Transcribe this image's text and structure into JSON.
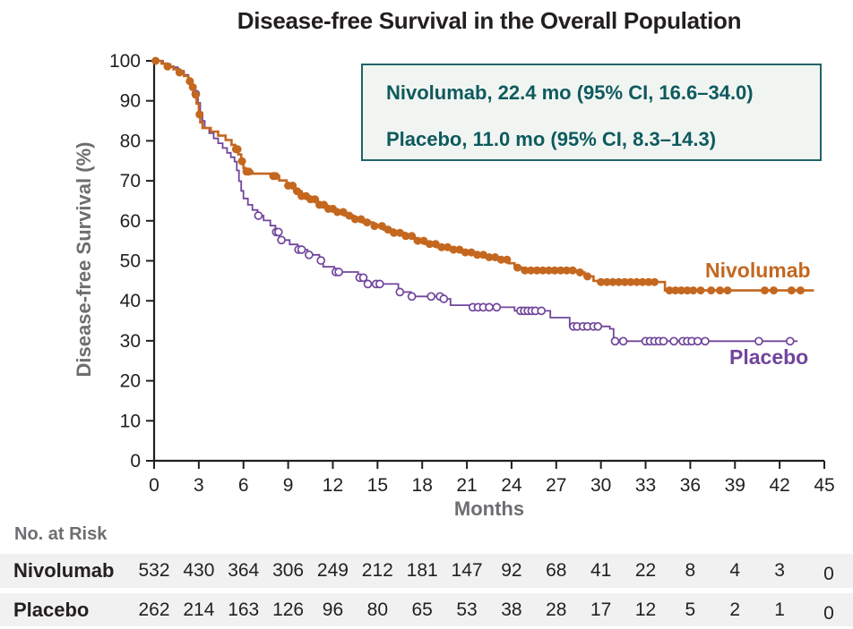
{
  "title": "Disease-free Survival in the Overall Population",
  "legend_box": {
    "lines": [
      "Nivolumab, 22.4 mo (95% CI, 16.6–34.0)",
      "Placebo, 11.0 mo (95% CI, 8.3–14.3)"
    ]
  },
  "colors": {
    "nivolumab": "#C4671F",
    "placebo": "#71459B",
    "legend_text": "#0E5A5E",
    "legend_border": "#1E6468",
    "legend_bg": "#F1F5F2",
    "axis_text": "#231F20",
    "muted_text": "#6D6E71",
    "row_stripe": "#F1F1F2"
  },
  "chart_data": {
    "type": "line",
    "subtype": "kaplan-meier-step",
    "title": "Disease-free Survival in the Overall Population",
    "xlabel": "Months",
    "ylabel": "Disease-free Survival (%)",
    "xlim": [
      0,
      45
    ],
    "ylim": [
      0,
      100
    ],
    "xticks": [
      0,
      3,
      6,
      9,
      12,
      15,
      18,
      21,
      24,
      27,
      30,
      33,
      36,
      39,
      42,
      45
    ],
    "yticks": [
      0,
      10,
      20,
      30,
      40,
      50,
      60,
      70,
      80,
      90,
      100
    ],
    "grid": false,
    "legend_position": "top-right-box",
    "series": [
      {
        "name": "Nivolumab",
        "color": "#C4671F",
        "median_months": 22.4,
        "ci_95": "16.6–34.0",
        "marker": "filled-circle",
        "end_time": 44.3,
        "steps": [
          [
            0,
            100
          ],
          [
            0.5,
            99.3
          ],
          [
            0.9,
            98.6
          ],
          [
            1.3,
            97.9
          ],
          [
            1.7,
            97.1
          ],
          [
            2.0,
            96.2
          ],
          [
            2.3,
            94.9
          ],
          [
            2.5,
            93.4
          ],
          [
            2.7,
            91.5
          ],
          [
            2.85,
            89.3
          ],
          [
            3.0,
            86.6
          ],
          [
            3.1,
            84.6
          ],
          [
            3.25,
            83.2
          ],
          [
            3.8,
            82.3
          ],
          [
            4.3,
            81.3
          ],
          [
            4.8,
            80.2
          ],
          [
            5.2,
            79.0
          ],
          [
            5.45,
            77.9
          ],
          [
            5.65,
            76.6
          ],
          [
            5.85,
            74.9
          ],
          [
            6.0,
            73.2
          ],
          [
            6.15,
            72.3
          ],
          [
            6.6,
            71.8
          ],
          [
            7.9,
            71.2
          ],
          [
            8.4,
            70.1
          ],
          [
            8.9,
            68.8
          ],
          [
            9.4,
            67.4
          ],
          [
            9.9,
            66.2
          ],
          [
            10.4,
            65.4
          ],
          [
            11.0,
            64.0
          ],
          [
            11.6,
            63.0
          ],
          [
            12.2,
            62.2
          ],
          [
            12.8,
            61.3
          ],
          [
            13.4,
            60.4
          ],
          [
            14.0,
            59.6
          ],
          [
            14.7,
            58.7
          ],
          [
            15.4,
            57.8
          ],
          [
            16.1,
            57.0
          ],
          [
            16.8,
            56.2
          ],
          [
            17.5,
            55.0
          ],
          [
            18.2,
            54.2
          ],
          [
            19.0,
            53.4
          ],
          [
            19.8,
            52.8
          ],
          [
            20.6,
            52.1
          ],
          [
            21.4,
            51.5
          ],
          [
            22.2,
            50.9
          ],
          [
            23.0,
            50.3
          ],
          [
            23.8,
            49.4
          ],
          [
            24.2,
            48.3
          ],
          [
            24.7,
            47.6
          ],
          [
            28.4,
            47.1
          ],
          [
            28.9,
            46.1
          ],
          [
            29.5,
            45.0
          ],
          [
            29.8,
            44.7
          ],
          [
            34.3,
            42.6
          ]
        ],
        "censor_times": [
          0.1,
          0.9,
          1.7,
          2.4,
          2.6,
          2.8,
          3.05,
          5.5,
          5.6,
          5.9,
          6.2,
          6.35,
          8.0,
          8.15,
          9.0,
          9.3,
          9.6,
          9.9,
          10.2,
          10.5,
          10.8,
          11.1,
          11.4,
          11.7,
          12.0,
          12.3,
          12.7,
          13.1,
          13.5,
          13.9,
          14.3,
          14.8,
          15.3,
          15.7,
          16.1,
          16.5,
          16.9,
          17.3,
          17.7,
          18.1,
          18.5,
          18.9,
          19.3,
          19.7,
          20.1,
          20.5,
          20.9,
          21.3,
          21.7,
          22.1,
          22.5,
          22.9,
          23.3,
          23.7,
          24.4,
          24.9,
          25.3,
          25.7,
          26.1,
          26.5,
          26.9,
          27.3,
          27.7,
          28.1,
          28.6,
          29.1,
          30.0,
          30.4,
          30.8,
          31.2,
          31.6,
          32.0,
          32.4,
          32.8,
          33.2,
          33.6,
          34.6,
          35.0,
          35.4,
          35.8,
          36.2,
          36.7,
          37.4,
          38.0,
          38.5,
          41.0,
          41.6,
          42.8,
          43.4
        ]
      },
      {
        "name": "Placebo",
        "color": "#71459B",
        "median_months": 11.0,
        "ci_95": "8.3–14.3",
        "marker": "open-circle",
        "end_time": 43.2,
        "steps": [
          [
            0,
            100
          ],
          [
            0.6,
            99.2
          ],
          [
            1.1,
            98.4
          ],
          [
            1.6,
            97.5
          ],
          [
            2.0,
            96.5
          ],
          [
            2.3,
            95.2
          ],
          [
            2.55,
            93.6
          ],
          [
            2.75,
            91.7
          ],
          [
            2.95,
            89.5
          ],
          [
            3.1,
            87.0
          ],
          [
            3.25,
            85.0
          ],
          [
            3.4,
            83.2
          ],
          [
            3.7,
            81.9
          ],
          [
            4.0,
            80.6
          ],
          [
            4.3,
            79.4
          ],
          [
            4.6,
            78.2
          ],
          [
            4.9,
            77.0
          ],
          [
            5.15,
            75.9
          ],
          [
            5.4,
            74.8
          ],
          [
            5.55,
            72.6
          ],
          [
            5.7,
            69.9
          ],
          [
            5.85,
            67.5
          ],
          [
            6.0,
            65.6
          ],
          [
            6.3,
            64.0
          ],
          [
            6.6,
            62.7
          ],
          [
            6.95,
            61.3
          ],
          [
            7.35,
            60.1
          ],
          [
            7.8,
            58.8
          ],
          [
            8.15,
            57.2
          ],
          [
            8.4,
            55.2
          ],
          [
            9.1,
            54.1
          ],
          [
            9.65,
            52.8
          ],
          [
            10.3,
            51.5
          ],
          [
            11.1,
            50.1
          ],
          [
            11.35,
            48.5
          ],
          [
            12.1,
            47.2
          ],
          [
            13.7,
            45.8
          ],
          [
            14.2,
            44.2
          ],
          [
            16.4,
            42.2
          ],
          [
            17.25,
            41.1
          ],
          [
            19.4,
            40.5
          ],
          [
            19.9,
            38.9
          ],
          [
            21.2,
            38.4
          ],
          [
            24.2,
            37.5
          ],
          [
            26.6,
            35.8
          ],
          [
            27.9,
            33.6
          ],
          [
            30.6,
            33.0
          ],
          [
            30.85,
            29.9
          ]
        ],
        "censor_times": [
          2.8,
          7.0,
          8.2,
          8.35,
          8.55,
          9.7,
          9.9,
          10.4,
          11.2,
          12.2,
          12.4,
          13.8,
          14.05,
          14.35,
          14.9,
          15.15,
          16.5,
          17.3,
          18.6,
          19.2,
          19.45,
          21.4,
          21.75,
          22.1,
          22.5,
          23.0,
          24.6,
          24.85,
          25.1,
          25.35,
          25.6,
          26.0,
          28.15,
          28.4,
          28.8,
          29.1,
          29.5,
          29.8,
          30.95,
          31.5,
          33.0,
          33.3,
          33.6,
          33.9,
          34.2,
          34.9,
          35.5,
          35.8,
          36.1,
          36.5,
          37.0,
          40.6,
          42.7
        ]
      }
    ]
  },
  "risk_table": {
    "header": "No. at Risk",
    "rows": [
      {
        "label": "Nivolumab",
        "values": [
          532,
          430,
          364,
          306,
          249,
          212,
          181,
          147,
          92,
          68,
          41,
          22,
          8,
          4,
          3,
          0
        ]
      },
      {
        "label": "Placebo",
        "values": [
          262,
          214,
          163,
          126,
          96,
          80,
          65,
          53,
          38,
          28,
          17,
          12,
          5,
          2,
          1,
          0
        ]
      }
    ]
  }
}
